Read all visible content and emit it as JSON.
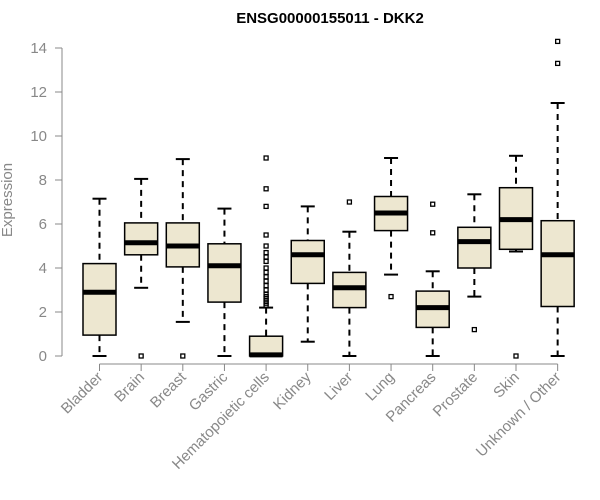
{
  "chart_data": {
    "type": "boxplot",
    "title": "ENSG00000155011 - DKK2",
    "ylabel": "Expression",
    "ylim": [
      0,
      14.5
    ],
    "yticks": [
      0,
      2,
      4,
      6,
      8,
      10,
      12,
      14
    ],
    "box_fill": "#ede7d0",
    "categories": [
      "Bladder",
      "Brain",
      "Breast",
      "Gastric",
      "Hematopoietic cells",
      "Kidney",
      "Liver",
      "Lung",
      "Pancreas",
      "Prostate",
      "Skin",
      "Unknown / Other"
    ],
    "boxes": [
      {
        "min": 0.0,
        "q1": 0.95,
        "median": 2.9,
        "q3": 4.2,
        "max": 7.15,
        "outliers": []
      },
      {
        "min": 3.1,
        "q1": 4.6,
        "median": 5.15,
        "q3": 6.05,
        "max": 8.05,
        "outliers": [
          0.0
        ]
      },
      {
        "min": 1.55,
        "q1": 4.05,
        "median": 5.0,
        "q3": 6.05,
        "max": 8.95,
        "outliers": [
          0.0
        ]
      },
      {
        "min": 0.0,
        "q1": 2.45,
        "median": 4.1,
        "q3": 5.1,
        "max": 6.7,
        "outliers": []
      },
      {
        "min": 0.0,
        "q1": 0.0,
        "median": 0.05,
        "q3": 0.9,
        "max": 2.2,
        "outliers": [
          2.3,
          2.4,
          2.5,
          2.6,
          2.7,
          2.8,
          3.0,
          3.2,
          3.4,
          3.6,
          3.8,
          4.0,
          4.3,
          4.5,
          4.7,
          5.0,
          5.5,
          6.8,
          7.6,
          9.0
        ]
      },
      {
        "min": 0.65,
        "q1": 3.3,
        "median": 4.6,
        "q3": 5.25,
        "max": 6.8,
        "outliers": []
      },
      {
        "min": 0.0,
        "q1": 2.2,
        "median": 3.1,
        "q3": 3.8,
        "max": 5.65,
        "outliers": [
          7.0
        ]
      },
      {
        "min": 3.7,
        "q1": 5.7,
        "median": 6.5,
        "q3": 7.25,
        "max": 9.0,
        "outliers": [
          2.7
        ]
      },
      {
        "min": 0.0,
        "q1": 1.3,
        "median": 2.2,
        "q3": 2.95,
        "max": 3.85,
        "outliers": [
          5.6,
          6.9
        ]
      },
      {
        "min": 2.7,
        "q1": 4.0,
        "median": 5.2,
        "q3": 5.85,
        "max": 7.35,
        "outliers": [
          1.2
        ]
      },
      {
        "min": 4.75,
        "q1": 4.85,
        "median": 6.2,
        "q3": 7.65,
        "max": 9.1,
        "outliers": [
          0.0
        ]
      },
      {
        "min": 0.0,
        "q1": 2.25,
        "median": 4.6,
        "q3": 6.15,
        "max": 11.5,
        "outliers": [
          13.3,
          14.3
        ]
      }
    ]
  }
}
